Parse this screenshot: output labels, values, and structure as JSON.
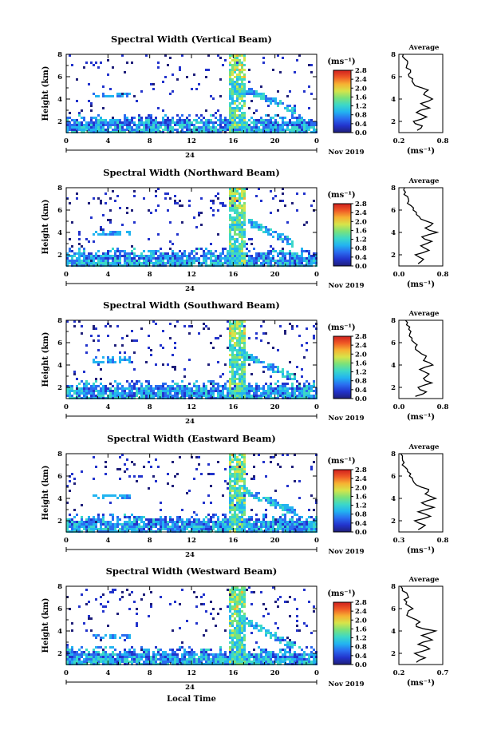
{
  "colors": {
    "background": "#ffffff",
    "colorbar_stops": [
      "#1f1f7a",
      "#2233cc",
      "#2a6cf0",
      "#22b4f0",
      "#3cd8c8",
      "#7ae27a",
      "#d6e44a",
      "#f6b232",
      "#f05a26",
      "#d0201e"
    ]
  },
  "shared": {
    "date_label": "Nov 2019",
    "day_label": "24",
    "xlabel": "Local Time",
    "ylabel": "Height (km)",
    "avg_title": "Average",
    "unit_label": "(ms⁻¹)",
    "x_ticks": [
      "0",
      "4",
      "8",
      "12",
      "16",
      "20",
      "0"
    ],
    "y_ticks": [
      "2",
      "4",
      "6",
      "8"
    ],
    "colorbar_ticks": [
      "0.0",
      "0.4",
      "0.8",
      "1.2",
      "1.6",
      "2.0",
      "2.4",
      "2.8"
    ]
  },
  "chart_data": [
    {
      "type": "heatmap",
      "title": "Spectral Width (Vertical Beam)",
      "xlim": [
        0,
        24
      ],
      "ylim": [
        1,
        8
      ],
      "clim": [
        0.0,
        2.8
      ],
      "features": {
        "bottom_band_top_km": 2.4,
        "precip_band_hours": [
          15.5,
          17.0
        ],
        "precip_band_top_km": 8.0,
        "slant_layer_from": [
          17.0,
          5.0
        ],
        "slant_layer_to": [
          22.0,
          3.0
        ],
        "patch_at_km": 4.4
      },
      "average": {
        "xlim": [
          0.2,
          0.8
        ],
        "x_ticks": [
          "0.2",
          "0.8"
        ],
        "y_ticks": [
          "2",
          "4",
          "6",
          "8"
        ],
        "profile": [
          [
            0.45,
            1.2
          ],
          [
            0.52,
            1.6
          ],
          [
            0.4,
            2.0
          ],
          [
            0.58,
            2.4
          ],
          [
            0.44,
            2.8
          ],
          [
            0.62,
            3.2
          ],
          [
            0.5,
            3.6
          ],
          [
            0.66,
            4.0
          ],
          [
            0.54,
            4.4
          ],
          [
            0.6,
            4.8
          ],
          [
            0.42,
            5.2
          ],
          [
            0.38,
            5.6
          ],
          [
            0.34,
            6.0
          ],
          [
            0.36,
            6.4
          ],
          [
            0.3,
            6.8
          ],
          [
            0.32,
            7.2
          ],
          [
            0.28,
            7.6
          ],
          [
            0.26,
            8.0
          ]
        ]
      }
    },
    {
      "type": "heatmap",
      "title": "Spectral Width (Northward Beam)",
      "xlim": [
        0,
        24
      ],
      "ylim": [
        1,
        8
      ],
      "clim": [
        0.0,
        2.8
      ],
      "features": {
        "bottom_band_top_km": 2.4,
        "precip_band_hours": [
          15.5,
          17.0
        ],
        "precip_band_top_km": 8.0,
        "slant_layer_from": [
          17.0,
          5.2
        ],
        "slant_layer_to": [
          22.0,
          3.0
        ],
        "patch_at_km": 4.0
      },
      "average": {
        "xlim": [
          0.0,
          0.8
        ],
        "x_ticks": [
          "0.0",
          "0.8"
        ],
        "y_ticks": [
          "2",
          "4",
          "6",
          "8"
        ],
        "profile": [
          [
            0.35,
            1.2
          ],
          [
            0.45,
            1.6
          ],
          [
            0.3,
            2.0
          ],
          [
            0.55,
            2.4
          ],
          [
            0.4,
            2.8
          ],
          [
            0.6,
            3.2
          ],
          [
            0.42,
            3.6
          ],
          [
            0.7,
            4.0
          ],
          [
            0.48,
            4.4
          ],
          [
            0.62,
            4.8
          ],
          [
            0.4,
            5.2
          ],
          [
            0.32,
            5.6
          ],
          [
            0.26,
            6.0
          ],
          [
            0.22,
            6.4
          ],
          [
            0.18,
            6.8
          ],
          [
            0.16,
            7.2
          ],
          [
            0.12,
            7.6
          ],
          [
            0.1,
            8.0
          ]
        ]
      }
    },
    {
      "type": "heatmap",
      "title": "Spectral Width (Southward Beam)",
      "xlim": [
        0,
        24
      ],
      "ylim": [
        1,
        8
      ],
      "clim": [
        0.0,
        2.8
      ],
      "features": {
        "bottom_band_top_km": 2.4,
        "precip_band_hours": [
          15.5,
          17.0
        ],
        "precip_band_top_km": 8.0,
        "slant_layer_from": [
          17.0,
          5.0
        ],
        "slant_layer_to": [
          22.0,
          2.8
        ],
        "patch_at_km": 4.6
      },
      "average": {
        "xlim": [
          0.0,
          0.8
        ],
        "x_ticks": [
          "0.0",
          "0.8"
        ],
        "y_ticks": [
          "2",
          "4",
          "6",
          "8"
        ],
        "profile": [
          [
            0.3,
            1.2
          ],
          [
            0.5,
            1.6
          ],
          [
            0.35,
            2.0
          ],
          [
            0.6,
            2.4
          ],
          [
            0.45,
            2.8
          ],
          [
            0.55,
            3.2
          ],
          [
            0.38,
            3.6
          ],
          [
            0.62,
            4.0
          ],
          [
            0.45,
            4.4
          ],
          [
            0.5,
            4.8
          ],
          [
            0.36,
            5.2
          ],
          [
            0.3,
            5.6
          ],
          [
            0.28,
            6.0
          ],
          [
            0.24,
            6.4
          ],
          [
            0.2,
            6.8
          ],
          [
            0.18,
            7.2
          ],
          [
            0.14,
            7.6
          ],
          [
            0.12,
            8.0
          ]
        ]
      }
    },
    {
      "type": "heatmap",
      "title": "Spectral Width (Eastward Beam)",
      "xlim": [
        0,
        24
      ],
      "ylim": [
        1,
        8
      ],
      "clim": [
        0.0,
        2.8
      ],
      "features": {
        "bottom_band_top_km": 2.4,
        "precip_band_hours": [
          15.5,
          17.0
        ],
        "precip_band_top_km": 8.0,
        "slant_layer_from": [
          17.0,
          4.8
        ],
        "slant_layer_to": [
          22.0,
          2.8
        ],
        "patch_at_km": 4.2
      },
      "average": {
        "xlim": [
          0.3,
          0.8
        ],
        "x_ticks": [
          "0.3",
          "0.8"
        ],
        "y_ticks": [
          "2",
          "4",
          "6",
          "8"
        ],
        "profile": [
          [
            0.52,
            1.2
          ],
          [
            0.6,
            1.6
          ],
          [
            0.48,
            2.0
          ],
          [
            0.66,
            2.4
          ],
          [
            0.52,
            2.8
          ],
          [
            0.7,
            3.2
          ],
          [
            0.56,
            3.6
          ],
          [
            0.72,
            4.0
          ],
          [
            0.6,
            4.4
          ],
          [
            0.64,
            4.8
          ],
          [
            0.5,
            5.2
          ],
          [
            0.46,
            5.6
          ],
          [
            0.42,
            6.0
          ],
          [
            0.4,
            6.4
          ],
          [
            0.37,
            6.8
          ],
          [
            0.36,
            7.2
          ],
          [
            0.34,
            7.6
          ],
          [
            0.32,
            8.0
          ]
        ]
      }
    },
    {
      "type": "heatmap",
      "title": "Spectral Width (Westward Beam)",
      "xlim": [
        0,
        24
      ],
      "ylim": [
        1,
        8
      ],
      "clim": [
        0.0,
        2.8
      ],
      "features": {
        "bottom_band_top_km": 2.4,
        "precip_band_hours": [
          15.5,
          17.0
        ],
        "precip_band_top_km": 8.0,
        "slant_layer_from": [
          17.0,
          5.0
        ],
        "slant_layer_to": [
          22.0,
          2.6
        ],
        "patch_at_km": 3.6
      },
      "average": {
        "xlim": [
          0.2,
          0.7
        ],
        "x_ticks": [
          "0.2",
          "0.7"
        ],
        "y_ticks": [
          "2",
          "4",
          "6",
          "8"
        ],
        "profile": [
          [
            0.4,
            1.2
          ],
          [
            0.5,
            1.6
          ],
          [
            0.38,
            2.0
          ],
          [
            0.55,
            2.4
          ],
          [
            0.42,
            2.8
          ],
          [
            0.58,
            3.2
          ],
          [
            0.46,
            3.6
          ],
          [
            0.62,
            4.0
          ],
          [
            0.4,
            4.4
          ],
          [
            0.44,
            4.8
          ],
          [
            0.34,
            5.2
          ],
          [
            0.3,
            5.6
          ],
          [
            0.36,
            6.0
          ],
          [
            0.28,
            6.4
          ],
          [
            0.26,
            6.8
          ],
          [
            0.3,
            7.2
          ],
          [
            0.24,
            7.6
          ],
          [
            0.22,
            8.0
          ]
        ]
      }
    }
  ]
}
